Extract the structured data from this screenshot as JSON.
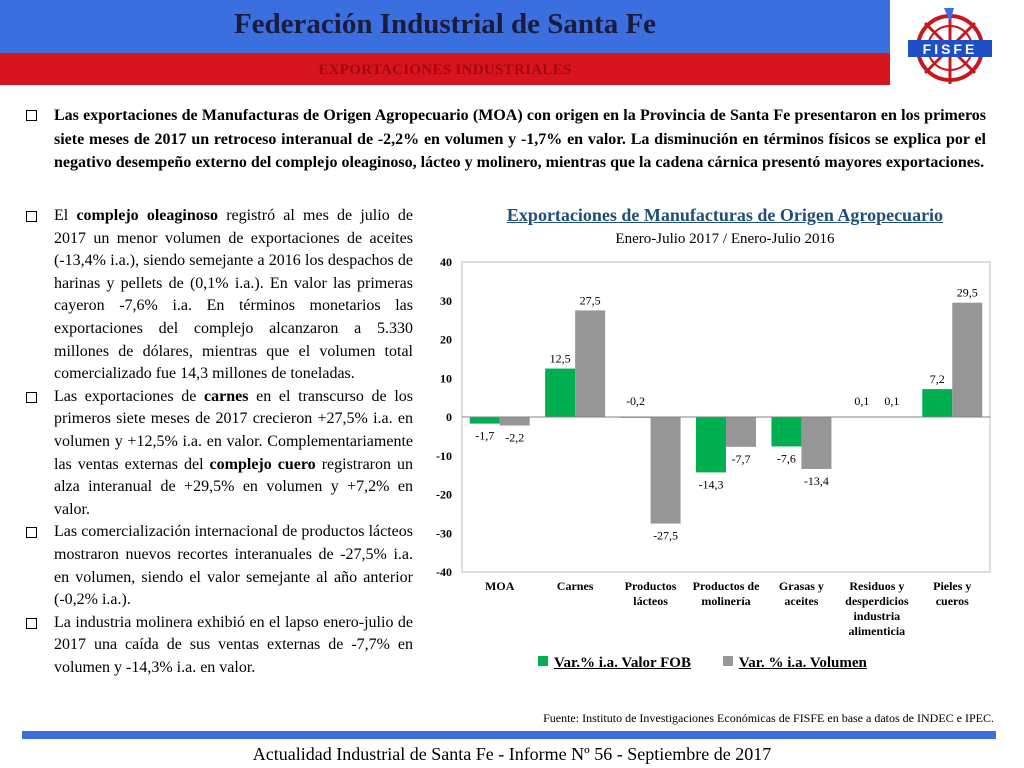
{
  "header": {
    "title": "Federación Industrial de Santa Fe",
    "subtitle": "EXPORTACIONES INDUSTRIALES",
    "logo_text": "FISFE"
  },
  "intro": "Las exportaciones de Manufacturas de Origen Agropecuario (MOA) con origen en la Provincia de Santa Fe presentaron en los primeros siete meses de 2017 un retroceso interanual de -2,2% en volumen y -1,7% en valor. La disminución en términos físicos se explica por el negativo desempeño externo del complejo oleaginoso, lácteo y molinero, mientras que la cadena cárnica presentó mayores exportaciones.",
  "bullets": [
    {
      "pre": "El ",
      "bold": "complejo oleaginoso",
      "post": " registró al mes de julio de 2017 un menor volumen de exportaciones de aceites (-13,4% i.a.), siendo semejante a 2016 los despachos de harinas y pellets de (0,1% i.a.). En valor las primeras cayeron -7,6% i.a. En términos monetarios las exportaciones del complejo alcanzaron a 5.330 millones de dólares, mientras que el volumen total comercializado fue 14,3 millones de toneladas."
    },
    {
      "pre": "Las exportaciones de ",
      "bold": "carnes",
      "mid": " en el transcurso de los primeros siete meses de 2017 crecieron +27,5% i.a. en volumen y +12,5% i.a. en valor. Complementariamente las ventas externas del ",
      "bold2": "complejo cuero",
      "post": " registraron un alza interanual de +29,5% en volumen y +7,2% en valor."
    },
    {
      "pre": "Las comercialización internacional de productos lácteos  mostraron nuevos recortes interanuales de -27,5% i.a. en volumen, siendo el valor semejante al año anterior (-0,2% i.a.)."
    },
    {
      "pre": "La industria molinera exhibió en el lapso enero-julio de 2017 una caída de sus ventas externas de -7,7% en volumen y -14,3% i.a. en valor."
    }
  ],
  "chart_data": {
    "type": "bar",
    "title": "Exportaciones de Manufacturas de Origen Agropecuario",
    "subtitle": "Enero-Julio 2017 / Enero-Julio 2016",
    "categories": [
      [
        "MOA"
      ],
      [
        "Carnes"
      ],
      [
        "Productos",
        "lácteos"
      ],
      [
        "Productos de",
        "molinería"
      ],
      [
        "Grasas y",
        "aceites"
      ],
      [
        "Residuos y",
        "desperdicios",
        "industria",
        "alimenticia"
      ],
      [
        "Pieles y",
        "cueros"
      ]
    ],
    "series": [
      {
        "name": "Var.% i.a. Valor FOB",
        "color": "#00b050",
        "values": [
          -1.7,
          12.5,
          -0.2,
          -14.3,
          -7.6,
          0.1,
          7.2
        ],
        "labels": [
          "-1,7",
          "12,5",
          "-0,2",
          "-14,3",
          "-7,6",
          "0,1",
          "7,2"
        ]
      },
      {
        "name": "Var. % i.a. Volumen",
        "color": "#969696",
        "values": [
          -2.2,
          27.5,
          -27.5,
          -7.7,
          -13.4,
          0.1,
          29.5
        ],
        "labels": [
          "-2,2",
          "27,5",
          "-27,5",
          "-7,7",
          "-13,4",
          "0,1",
          "29,5"
        ]
      }
    ],
    "ylim": [
      -40,
      40
    ],
    "yticks": [
      "40",
      "30",
      "20",
      "10",
      "0",
      "-10",
      "-20",
      "-30",
      "-40"
    ],
    "legend": "bottom"
  },
  "source": "Fuente: Instituto de Investigaciones Económicas de FISFE en base a datos de INDEC e IPEC.",
  "footer": "Actualidad Industrial de Santa Fe - Informe Nº 56 - Septiembre de 2017"
}
